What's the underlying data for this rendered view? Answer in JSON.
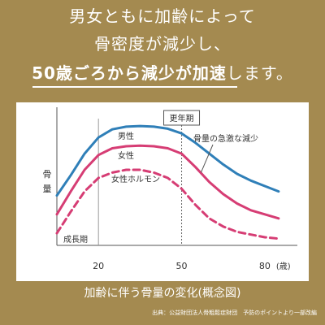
{
  "headline": {
    "line1": "男女ともに加齢によって",
    "line2": "骨密度が減少し、",
    "line3_strong": "50歳ごろから減少が加速",
    "line3_rest": "します。"
  },
  "caption": "加齢に伴う骨量の変化(概念図)",
  "source": "出典：公益財団法人骨粗鬆症財団　予防のポイントより一部改編",
  "colors": {
    "background": "#a48a50",
    "male": "#2f7fb8",
    "female": "#d63d74",
    "hormone": "#d63d74",
    "text": "#333333"
  },
  "chart_data": {
    "type": "line",
    "ylabel": "骨量",
    "x_unit": "(歳)",
    "x_ticks": [
      20,
      50,
      80
    ],
    "xlim": [
      5,
      90
    ],
    "ylim": [
      0,
      10
    ],
    "series": [
      {
        "name": "男性",
        "color": "#2f7fb8",
        "style": "solid",
        "points": [
          [
            5,
            3.7
          ],
          [
            10,
            5.2
          ],
          [
            15,
            6.8
          ],
          [
            20,
            8.0
          ],
          [
            25,
            8.6
          ],
          [
            30,
            8.8
          ],
          [
            35,
            8.85
          ],
          [
            40,
            8.8
          ],
          [
            45,
            8.65
          ],
          [
            50,
            8.3
          ],
          [
            55,
            7.6
          ],
          [
            60,
            6.8
          ],
          [
            65,
            6.0
          ],
          [
            70,
            5.3
          ],
          [
            75,
            4.8
          ],
          [
            80,
            4.4
          ],
          [
            85,
            4.0
          ]
        ]
      },
      {
        "name": "女性",
        "color": "#d63d74",
        "style": "solid",
        "points": [
          [
            5,
            2.3
          ],
          [
            10,
            4.0
          ],
          [
            15,
            5.6
          ],
          [
            20,
            6.7
          ],
          [
            25,
            7.2
          ],
          [
            30,
            7.35
          ],
          [
            35,
            7.4
          ],
          [
            40,
            7.35
          ],
          [
            45,
            7.2
          ],
          [
            50,
            6.8
          ],
          [
            55,
            5.8
          ],
          [
            60,
            4.7
          ],
          [
            65,
            3.8
          ],
          [
            70,
            3.1
          ],
          [
            75,
            2.6
          ],
          [
            80,
            2.3
          ],
          [
            85,
            2.0
          ]
        ]
      },
      {
        "name": "女性ホルモン",
        "color": "#d63d74",
        "style": "dashed",
        "points": [
          [
            5,
            0.9
          ],
          [
            10,
            2.5
          ],
          [
            15,
            4.0
          ],
          [
            20,
            5.0
          ],
          [
            25,
            5.4
          ],
          [
            30,
            5.6
          ],
          [
            35,
            5.6
          ],
          [
            40,
            5.4
          ],
          [
            45,
            5.0
          ],
          [
            50,
            4.2
          ],
          [
            55,
            3.0
          ],
          [
            60,
            2.0
          ],
          [
            65,
            1.4
          ],
          [
            70,
            1.0
          ],
          [
            75,
            0.8
          ],
          [
            80,
            0.6
          ],
          [
            85,
            0.5
          ]
        ]
      }
    ],
    "annotations": {
      "menopause_label": "更年期",
      "menopause_age": 50,
      "rapid_decline_label": "骨量の急激な減少",
      "growth_label": "成長期",
      "growth_end_age": 20
    }
  }
}
